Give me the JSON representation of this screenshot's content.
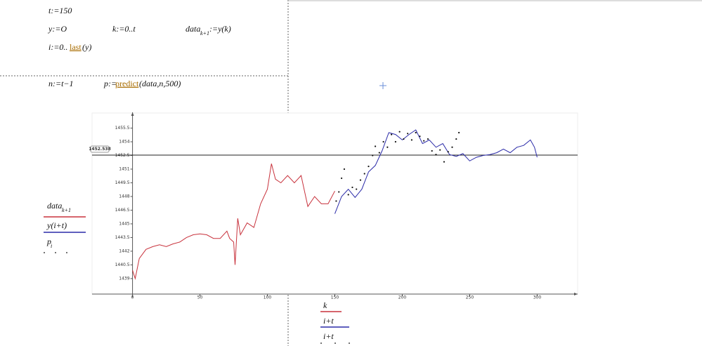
{
  "worksheet": {
    "t_def": "t:=150",
    "y_def": "y:=O",
    "k_def": "k:=0..t",
    "data_def": {
      "name": "data",
      "sub": "k+1",
      "rest": ":=y(k)"
    },
    "i_def": {
      "start": "i:=0..",
      "func": "last",
      "rest": "(y)"
    },
    "n_def": "n:=t−1",
    "p_def": {
      "start": "p:=",
      "func": "predict",
      "rest": "(data,n,500)"
    }
  },
  "chart_data": {
    "type": "line",
    "xlim": [
      -30,
      330
    ],
    "ylim": [
      1437.3,
      1457
    ],
    "xticks": [
      0,
      50,
      100,
      150,
      200,
      250,
      300
    ],
    "yticks": [
      1439,
      1440.5,
      1442,
      1443.5,
      1445,
      1446.5,
      1448,
      1449.5,
      1451,
      1452.5,
      1454,
      1455.5
    ],
    "hline": 1452.538,
    "x_axis_labels": [
      "k",
      "i+t",
      "i+t"
    ],
    "series": [
      {
        "name": "data",
        "name_sub": "k+1",
        "color": "#c8323c",
        "mode": "line",
        "x": [
          0,
          2,
          5,
          10,
          15,
          20,
          25,
          30,
          35,
          40,
          45,
          50,
          55,
          60,
          65,
          70,
          72,
          75,
          76,
          78,
          80,
          85,
          90,
          95,
          100,
          103,
          106,
          110,
          115,
          120,
          125,
          130,
          135,
          140,
          145,
          150
        ],
        "values": [
          1439.9,
          1439,
          1441.2,
          1442.2,
          1442.5,
          1442.7,
          1442.5,
          1442.8,
          1443,
          1443.5,
          1443.8,
          1443.9,
          1443.8,
          1443.4,
          1443.4,
          1444.2,
          1443.4,
          1443,
          1440.5,
          1445.6,
          1443.8,
          1445.1,
          1444.6,
          1447.2,
          1448.8,
          1451.6,
          1449.9,
          1449.5,
          1450.3,
          1449.5,
          1450.3,
          1446.9,
          1448,
          1447.2,
          1447.2,
          1448.6
        ]
      },
      {
        "name": "y(i+t)",
        "color": "#2a2aa8",
        "mode": "line",
        "x": [
          150,
          155,
          160,
          165,
          170,
          175,
          180,
          185,
          190,
          195,
          200,
          205,
          210,
          215,
          220,
          225,
          230,
          235,
          240,
          245,
          250,
          255,
          260,
          265,
          270,
          275,
          280,
          285,
          290,
          295,
          298,
          300
        ],
        "values": [
          1446.1,
          1448,
          1448.8,
          1447.9,
          1448.8,
          1450.7,
          1451.4,
          1453,
          1455,
          1454.8,
          1454.2,
          1454.8,
          1455.3,
          1453.8,
          1454.2,
          1453.4,
          1453.8,
          1452.6,
          1452.4,
          1452.7,
          1451.9,
          1452.3,
          1452.5,
          1452.6,
          1452.8,
          1453.2,
          1452.8,
          1453.4,
          1453.6,
          1454.2,
          1453.4,
          1452.3
        ]
      },
      {
        "name": "p",
        "name_sub": "i",
        "color": "#111111",
        "mode": "points",
        "x": [
          151,
          153,
          155,
          157,
          160,
          163,
          166,
          169,
          172,
          175,
          178,
          180,
          183,
          186,
          189,
          192,
          195,
          198,
          201,
          204,
          207,
          210,
          213,
          216,
          219,
          222,
          225,
          228,
          231,
          234,
          237,
          240,
          242
        ],
        "values": [
          1447.5,
          1448.5,
          1450,
          1451,
          1448.2,
          1449,
          1448.8,
          1449.8,
          1450.5,
          1451.3,
          1452.5,
          1453.5,
          1452.8,
          1454,
          1453.4,
          1454.8,
          1454,
          1455.1,
          1454.3,
          1454.9,
          1454.2,
          1455,
          1454.6,
          1454.1,
          1454.3,
          1453,
          1452.6,
          1453.1,
          1451.8,
          1452.9,
          1453.4,
          1454.3,
          1455
        ]
      }
    ]
  }
}
